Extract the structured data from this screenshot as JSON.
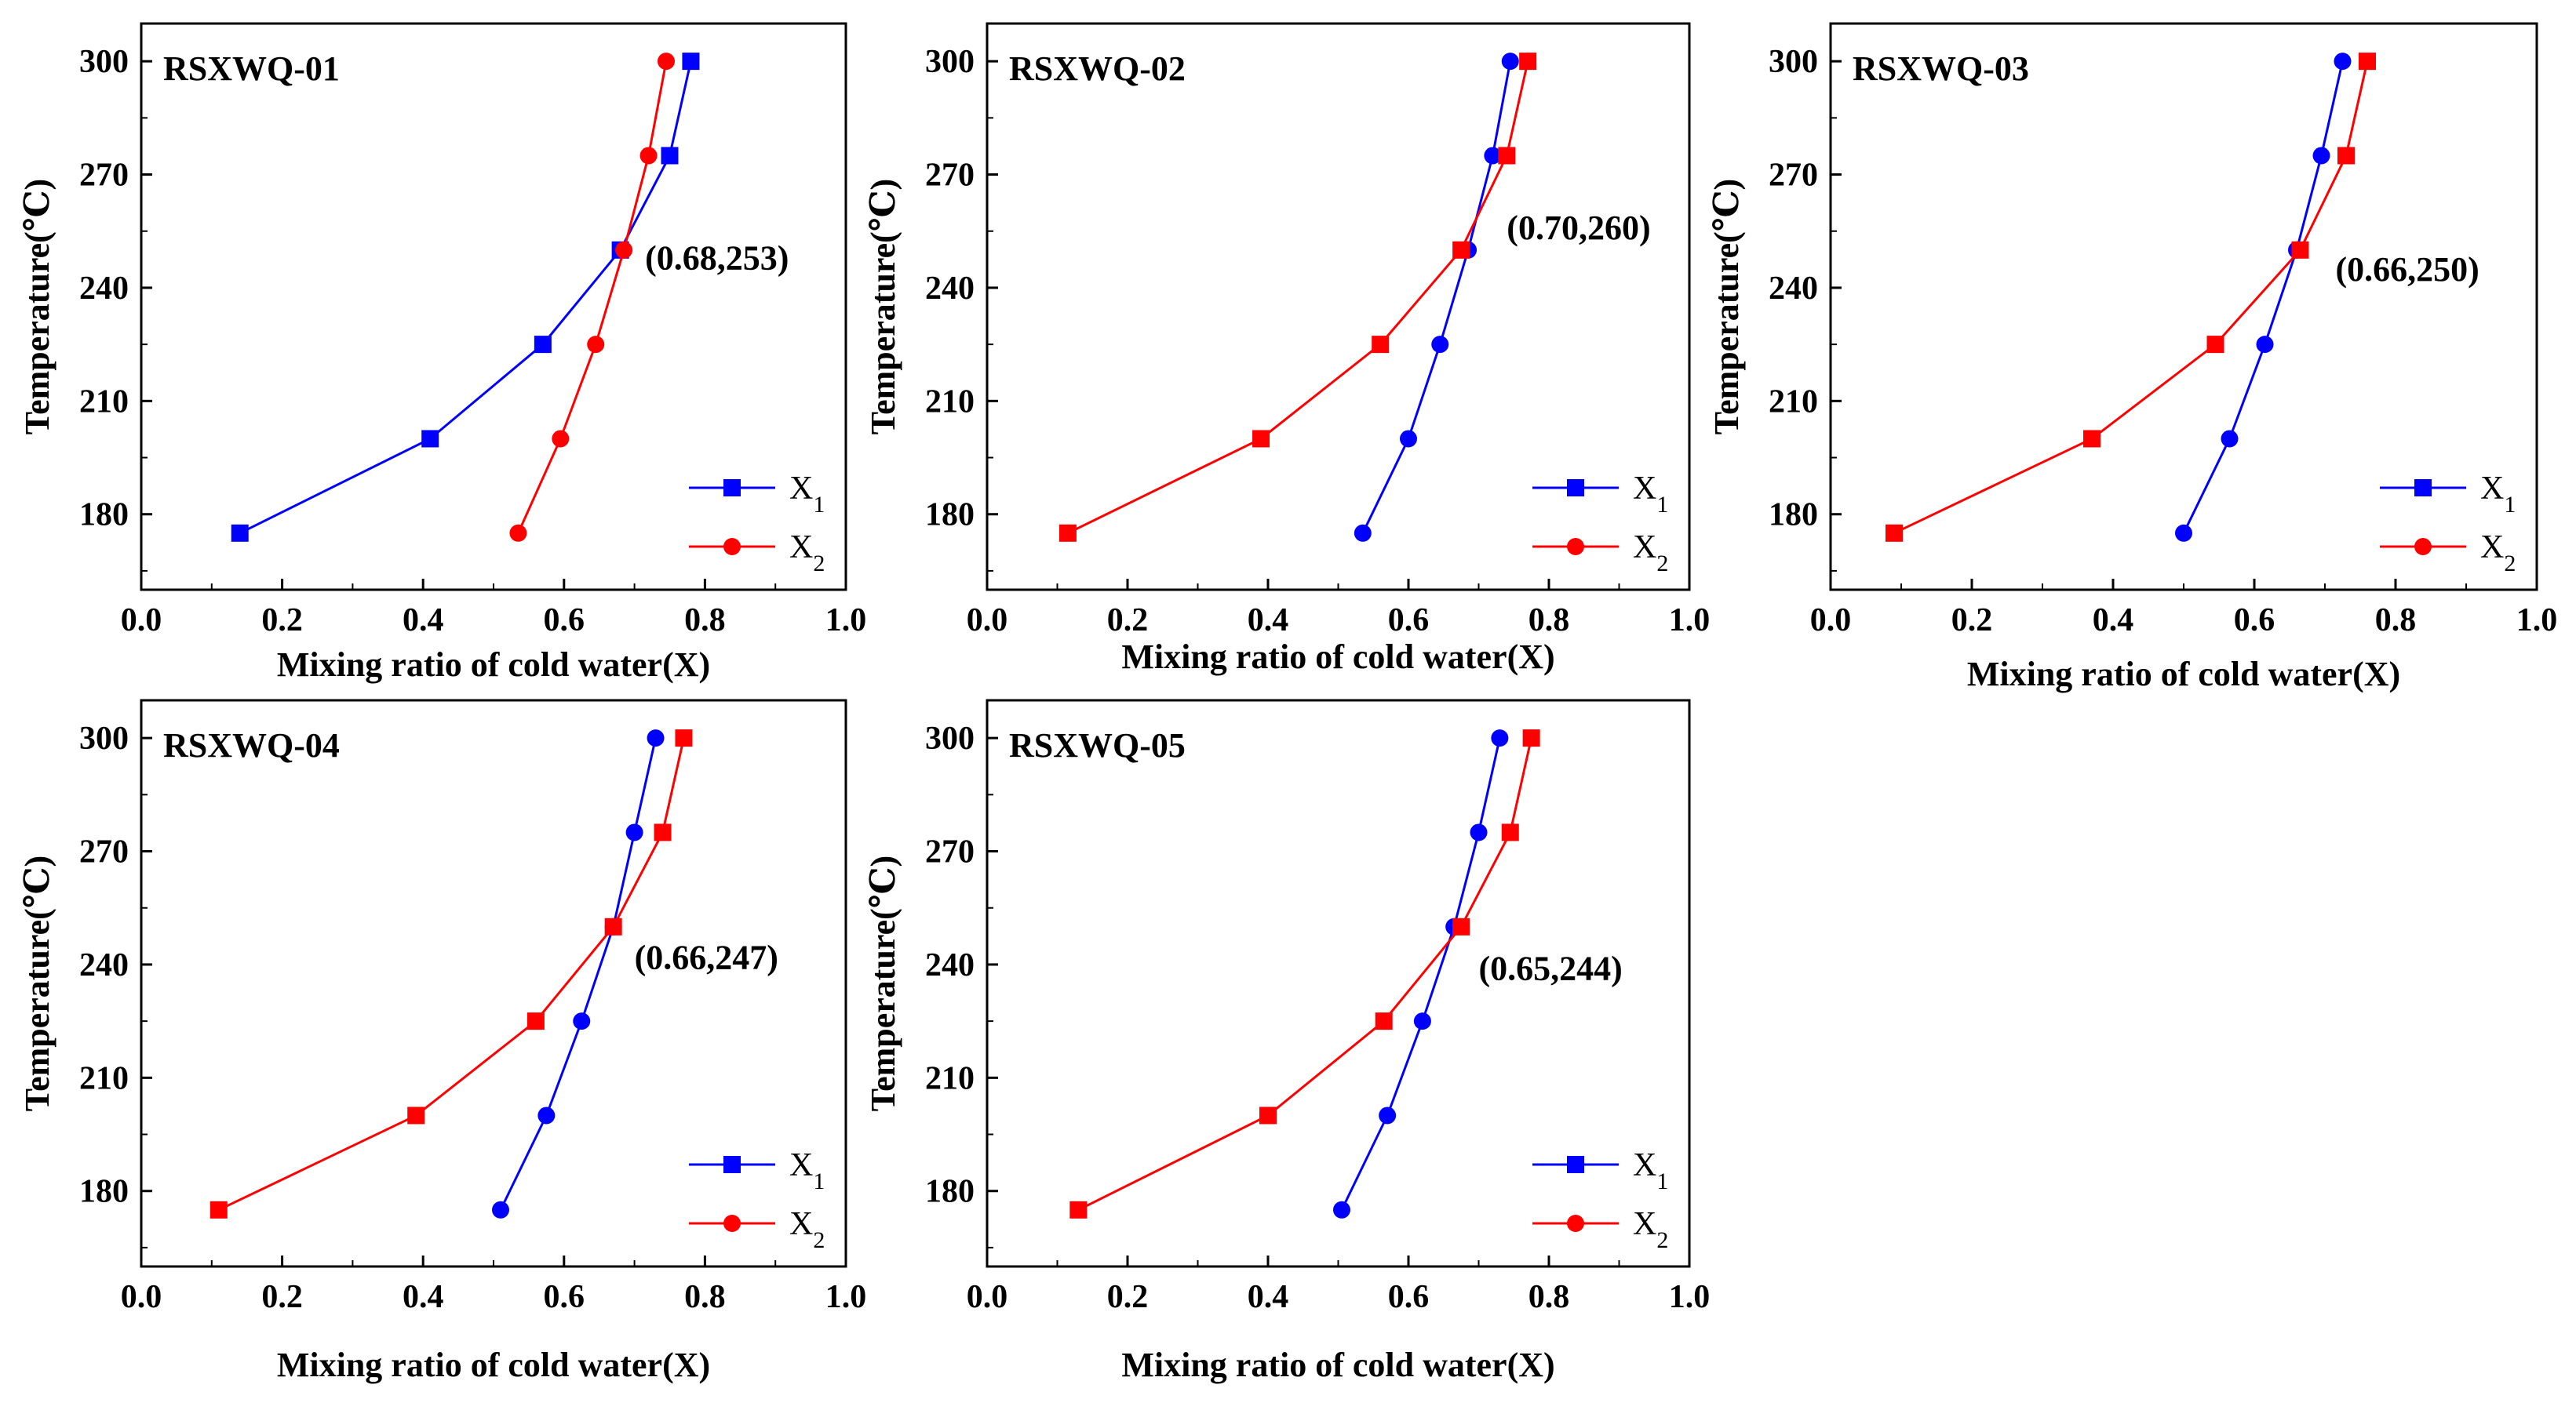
{
  "colors": {
    "X1": "#0000ff",
    "X2": "#ff0000",
    "axis": "#000000",
    "background": "#ffffff"
  },
  "chart_data": [
    {
      "type": "line",
      "title": "RSXWQ-01",
      "xlabel": "Mixing ratio of cold water(X)",
      "ylabel": "Temperature(℃)",
      "xlim": [
        0,
        1.0
      ],
      "ylim": [
        160,
        310
      ],
      "xticks": [
        "0.0",
        "0.2",
        "0.4",
        "0.6",
        "0.8",
        "1.0"
      ],
      "yticks": [
        "180",
        "210",
        "240",
        "270",
        "300"
      ],
      "annotation": "(0.68,253)",
      "legend": [
        "X1",
        "X2"
      ],
      "series": [
        {
          "name": "X1",
          "marker": "square",
          "x": [
            0.14,
            0.41,
            0.57,
            0.68,
            0.75,
            0.78
          ],
          "y": [
            175,
            200,
            225,
            250,
            275,
            300
          ]
        },
        {
          "name": "X2",
          "marker": "circle",
          "x": [
            0.535,
            0.595,
            0.645,
            0.685,
            0.72,
            0.745
          ],
          "y": [
            175,
            200,
            225,
            250,
            275,
            300
          ]
        }
      ]
    },
    {
      "type": "line",
      "title": "RSXWQ-02",
      "xlabel": "Mixing ratio of cold water(X)",
      "ylabel": "Temperature(℃)",
      "xlim": [
        0,
        1.0
      ],
      "ylim": [
        160,
        310
      ],
      "xticks": [
        "0.0",
        "0.2",
        "0.4",
        "0.6",
        "0.8",
        "1.0"
      ],
      "yticks": [
        "180",
        "210",
        "240",
        "270",
        "300"
      ],
      "annotation": "(0.70,260)",
      "legend": [
        "X1",
        "X2"
      ],
      "series": [
        {
          "name": "X1",
          "marker": "circle",
          "x": [
            0.535,
            0.6,
            0.645,
            0.685,
            0.72,
            0.745
          ],
          "y": [
            175,
            200,
            225,
            250,
            275,
            300
          ]
        },
        {
          "name": "X2",
          "marker": "square",
          "x": [
            0.115,
            0.39,
            0.56,
            0.675,
            0.74,
            0.77
          ],
          "y": [
            175,
            200,
            225,
            250,
            275,
            300
          ]
        }
      ]
    },
    {
      "type": "line",
      "title": "RSXWQ-03",
      "xlabel": "Mixing ratio of cold water(X)",
      "ylabel": "Temperature(℃)",
      "xlim": [
        0,
        1.0
      ],
      "ylim": [
        160,
        310
      ],
      "xticks": [
        "0.0",
        "0.2",
        "0.4",
        "0.6",
        "0.8",
        "1.0"
      ],
      "yticks": [
        "180",
        "210",
        "240",
        "270",
        "300"
      ],
      "annotation": "(0.66,250)",
      "legend": [
        "X1",
        "X2"
      ],
      "series": [
        {
          "name": "X1",
          "marker": "circle",
          "x": [
            0.5,
            0.565,
            0.615,
            0.66,
            0.695,
            0.725
          ],
          "y": [
            175,
            200,
            225,
            250,
            275,
            300
          ]
        },
        {
          "name": "X2",
          "marker": "square",
          "x": [
            0.09,
            0.37,
            0.545,
            0.665,
            0.73,
            0.76
          ],
          "y": [
            175,
            200,
            225,
            250,
            275,
            300
          ]
        }
      ]
    },
    {
      "type": "line",
      "title": "RSXWQ-04",
      "xlabel": "Mixing ratio of cold water(X)",
      "ylabel": "Temperature(℃)",
      "xlim": [
        0,
        1.0
      ],
      "ylim": [
        160,
        310
      ],
      "xticks": [
        "0.0",
        "0.2",
        "0.4",
        "0.6",
        "0.8",
        "1.0"
      ],
      "yticks": [
        "180",
        "210",
        "240",
        "270",
        "300"
      ],
      "annotation": "(0.66,247)",
      "legend": [
        "X1",
        "X2"
      ],
      "series": [
        {
          "name": "X1",
          "marker": "circle",
          "x": [
            0.51,
            0.575,
            0.625,
            0.67,
            0.7,
            0.73
          ],
          "y": [
            175,
            200,
            225,
            250,
            275,
            300
          ]
        },
        {
          "name": "X2",
          "marker": "square",
          "x": [
            0.11,
            0.39,
            0.56,
            0.67,
            0.74,
            0.77
          ],
          "y": [
            175,
            200,
            225,
            250,
            275,
            300
          ]
        }
      ]
    },
    {
      "type": "line",
      "title": "RSXWQ-05",
      "xlabel": "Mixing ratio of cold water(X)",
      "ylabel": "Temperature(℃)",
      "xlim": [
        0,
        1.0
      ],
      "ylim": [
        160,
        310
      ],
      "xticks": [
        "0.0",
        "0.2",
        "0.4",
        "0.6",
        "0.8",
        "1.0"
      ],
      "yticks": [
        "180",
        "210",
        "240",
        "270",
        "300"
      ],
      "annotation": "(0.65,244)",
      "legend": [
        "X1",
        "X2"
      ],
      "series": [
        {
          "name": "X1",
          "marker": "circle",
          "x": [
            0.505,
            0.57,
            0.62,
            0.665,
            0.7,
            0.73
          ],
          "y": [
            175,
            200,
            225,
            250,
            275,
            300
          ]
        },
        {
          "name": "X2",
          "marker": "square",
          "x": [
            0.13,
            0.4,
            0.565,
            0.675,
            0.745,
            0.775
          ],
          "y": [
            175,
            200,
            225,
            250,
            275,
            300
          ]
        }
      ]
    }
  ]
}
